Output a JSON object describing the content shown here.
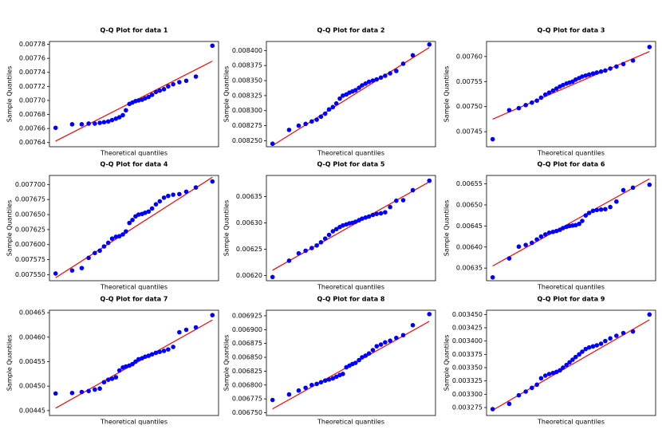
{
  "chart_data": [
    {
      "type": "scatter",
      "title": "Q-Q Plot for data 1",
      "xlabel": "Theoretical quantiles",
      "ylabel": "Sample Quantiles",
      "xlim": [
        -2.2,
        2.2
      ],
      "ylim": [
        0.007634,
        0.007784
      ],
      "yticks": [
        0.00764,
        0.00766,
        0.00768,
        {
          "value": 0.0077,
          "label": "0.00770"
        },
        0.00772,
        0.00774,
        0.00776,
        0.00778
      ],
      "series": [
        {
          "color": "blue",
          "x": [
            -2.04,
            -1.61,
            -1.36,
            -1.18,
            -1.02,
            -0.89,
            -0.78,
            -0.67,
            -0.57,
            -0.47,
            -0.38,
            -0.29,
            -0.21,
            -0.12,
            -0.04,
            0.04,
            0.12,
            0.21,
            0.29,
            0.38,
            0.47,
            0.57,
            0.67,
            0.78,
            0.89,
            1.02,
            1.18,
            1.36,
            1.61,
            2.04
          ],
          "values": [
            0.007661,
            0.007666,
            0.007666,
            0.007667,
            0.007667,
            0.007668,
            0.007669,
            0.00767,
            0.007672,
            0.007674,
            0.007676,
            0.007679,
            0.007686,
            0.007695,
            0.007697,
            0.007699,
            0.0077,
            0.007701,
            0.007703,
            0.007705,
            0.007708,
            0.007712,
            0.007714,
            0.007716,
            0.00772,
            0.007723,
            0.007726,
            0.007728,
            0.007734,
            0.007778
          ]
        }
      ],
      "fit_line": {
        "color": "red",
        "x": [
          -2.04,
          2.04
        ],
        "values": [
          0.007642,
          0.007756
        ]
      }
    },
    {
      "type": "scatter",
      "title": "Q-Q Plot for data 2",
      "xlabel": "Theoretical quantiles",
      "ylabel": "Sample Quantiles",
      "xlim": [
        -2.2,
        2.2
      ],
      "ylim": [
        0.00824,
        0.008415
      ],
      "yticks": [
        {
          "value": 0.00825,
          "label": "0.008250"
        },
        0.008275,
        {
          "value": 0.0083,
          "label": "0.008300"
        },
        0.008325,
        {
          "value": 0.00835,
          "label": "0.008350"
        },
        0.008375,
        {
          "value": 0.0084,
          "label": "0.008400"
        }
      ],
      "series": [
        {
          "color": "blue",
          "x": [
            -2.04,
            -1.61,
            -1.36,
            -1.18,
            -1.02,
            -0.89,
            -0.78,
            -0.67,
            -0.57,
            -0.47,
            -0.38,
            -0.29,
            -0.21,
            -0.12,
            -0.04,
            0.04,
            0.12,
            0.21,
            0.29,
            0.38,
            0.47,
            0.57,
            0.67,
            0.78,
            0.89,
            1.02,
            1.18,
            1.36,
            1.61,
            2.04
          ],
          "values": [
            0.008245,
            0.008268,
            0.008275,
            0.008278,
            0.008282,
            0.008285,
            0.00829,
            0.008295,
            0.008302,
            0.008306,
            0.008312,
            0.00832,
            0.008325,
            0.008327,
            0.00833,
            0.008332,
            0.008334,
            0.008338,
            0.008342,
            0.008345,
            0.008348,
            0.00835,
            0.008352,
            0.008355,
            0.008358,
            0.008362,
            0.008366,
            0.008378,
            0.008392,
            0.00841
          ]
        }
      ],
      "fit_line": {
        "color": "red",
        "x": [
          -2.04,
          2.04
        ],
        "values": [
          0.008242,
          0.008405
        ]
      }
    },
    {
      "type": "scatter",
      "title": "Q-Q Plot for data 3",
      "xlabel": "Theoretical quantiles",
      "ylabel": "Sample Quantiles",
      "xlim": [
        -2.2,
        2.2
      ],
      "ylim": [
        0.00742,
        0.00763
      ],
      "yticks": [
        0.00745,
        {
          "value": 0.0075,
          "label": "0.00750"
        },
        0.00755,
        {
          "value": 0.0076,
          "label": "0.00760"
        }
      ],
      "series": [
        {
          "color": "blue",
          "x": [
            -2.04,
            -1.61,
            -1.36,
            -1.18,
            -1.02,
            -0.89,
            -0.78,
            -0.67,
            -0.57,
            -0.47,
            -0.38,
            -0.29,
            -0.21,
            -0.12,
            -0.04,
            0.04,
            0.12,
            0.21,
            0.29,
            0.38,
            0.47,
            0.57,
            0.67,
            0.78,
            0.89,
            1.02,
            1.18,
            1.36,
            1.61,
            2.04
          ],
          "values": [
            0.007435,
            0.007493,
            0.007497,
            0.007503,
            0.007508,
            0.007512,
            0.007518,
            0.007524,
            0.007528,
            0.007532,
            0.007536,
            0.00754,
            0.007543,
            0.007546,
            0.007548,
            0.00755,
            0.007554,
            0.007557,
            0.00756,
            0.007562,
            0.007564,
            0.007566,
            0.007568,
            0.00757,
            0.007572,
            0.007576,
            0.00758,
            0.007585,
            0.007592,
            0.007619
          ]
        }
      ],
      "fit_line": {
        "color": "red",
        "x": [
          -2.04,
          2.04
        ],
        "values": [
          0.007475,
          0.00761
        ]
      }
    },
    {
      "type": "scatter",
      "title": "Q-Q Plot for data 4",
      "xlabel": "Theoretical quantiles",
      "ylabel": "Sample Quantiles",
      "xlim": [
        -2.2,
        2.2
      ],
      "ylim": [
        0.00754,
        0.007715
      ],
      "yticks": [
        {
          "value": 0.00755,
          "label": "0.007550"
        },
        0.007575,
        {
          "value": 0.0076,
          "label": "0.007600"
        },
        0.007625,
        {
          "value": 0.00765,
          "label": "0.007650"
        },
        0.007675,
        {
          "value": 0.0077,
          "label": "0.007700"
        }
      ],
      "series": [
        {
          "color": "blue",
          "x": [
            -2.04,
            -1.61,
            -1.36,
            -1.18,
            -1.02,
            -0.89,
            -0.78,
            -0.67,
            -0.57,
            -0.47,
            -0.38,
            -0.29,
            -0.21,
            -0.12,
            -0.04,
            0.04,
            0.12,
            0.21,
            0.29,
            0.38,
            0.47,
            0.57,
            0.67,
            0.78,
            0.89,
            1.02,
            1.18,
            1.36,
            1.61,
            2.04
          ],
          "values": [
            0.007552,
            0.007557,
            0.007561,
            0.007578,
            0.007586,
            0.00759,
            0.007597,
            0.007603,
            0.00761,
            0.007613,
            0.007614,
            0.007617,
            0.007622,
            0.007636,
            0.007641,
            0.007647,
            0.00765,
            0.007651,
            0.007653,
            0.007655,
            0.00766,
            0.007667,
            0.007672,
            0.007678,
            0.007681,
            0.007683,
            0.007684,
            0.007688,
            0.007695,
            0.007705
          ]
        }
      ],
      "fit_line": {
        "color": "red",
        "x": [
          -2.04,
          2.04
        ],
        "values": [
          0.007545,
          0.007712
        ]
      }
    },
    {
      "type": "scatter",
      "title": "Q-Q Plot for data 5",
      "xlabel": "Theoretical quantiles",
      "ylabel": "Sample Quantiles",
      "xlim": [
        -2.2,
        2.2
      ],
      "ylim": [
        0.00619,
        0.00639
      ],
      "yticks": [
        {
          "value": 0.0062,
          "label": "0.00620"
        },
        0.00625,
        {
          "value": 0.0063,
          "label": "0.00630"
        },
        0.00635
      ],
      "series": [
        {
          "color": "blue",
          "x": [
            -2.04,
            -1.61,
            -1.36,
            -1.18,
            -1.02,
            -0.89,
            -0.78,
            -0.67,
            -0.57,
            -0.47,
            -0.38,
            -0.29,
            -0.21,
            -0.12,
            -0.04,
            0.04,
            0.12,
            0.21,
            0.29,
            0.38,
            0.47,
            0.57,
            0.67,
            0.78,
            0.89,
            1.02,
            1.18,
            1.36,
            1.61,
            2.04
          ],
          "values": [
            0.006197,
            0.006228,
            0.006242,
            0.006247,
            0.006252,
            0.006257,
            0.006263,
            0.00627,
            0.006277,
            0.006284,
            0.006288,
            0.006292,
            0.006295,
            0.006297,
            0.006299,
            0.0063,
            0.006302,
            0.006305,
            0.006308,
            0.00631,
            0.006312,
            0.006315,
            0.006317,
            0.006318,
            0.00632,
            0.00633,
            0.006342,
            0.006343,
            0.006362,
            0.00638
          ]
        }
      ],
      "fit_line": {
        "color": "red",
        "x": [
          -2.04,
          2.04
        ],
        "values": [
          0.00621,
          0.006378
        ]
      }
    },
    {
      "type": "scatter",
      "title": "Q-Q Plot for data 6",
      "xlabel": "Theoretical quantiles",
      "ylabel": "Sample Quantiles",
      "xlim": [
        -2.2,
        2.2
      ],
      "ylim": [
        0.00632,
        0.00657
      ],
      "yticks": [
        0.00635,
        {
          "value": 0.0064,
          "label": "0.00640"
        },
        0.00645,
        {
          "value": 0.0065,
          "label": "0.00650"
        },
        0.00655
      ],
      "series": [
        {
          "color": "blue",
          "x": [
            -2.04,
            -1.61,
            -1.36,
            -1.18,
            -1.02,
            -0.89,
            -0.78,
            -0.67,
            -0.57,
            -0.47,
            -0.38,
            -0.29,
            -0.21,
            -0.12,
            -0.04,
            0.04,
            0.12,
            0.21,
            0.29,
            0.38,
            0.47,
            0.57,
            0.67,
            0.78,
            0.89,
            1.02,
            1.18,
            1.36,
            1.61,
            2.04
          ],
          "values": [
            0.006328,
            0.006373,
            0.006401,
            0.006405,
            0.00641,
            0.006418,
            0.006425,
            0.00643,
            0.006434,
            0.006436,
            0.006438,
            0.006441,
            0.006445,
            0.006448,
            0.00645,
            0.006451,
            0.006452,
            0.006455,
            0.006462,
            0.006475,
            0.006481,
            0.006486,
            0.006488,
            0.006489,
            0.00649,
            0.006495,
            0.006508,
            0.006535,
            0.006541,
            0.006548
          ]
        }
      ],
      "fit_line": {
        "color": "red",
        "x": [
          -2.04,
          2.04
        ],
        "values": [
          0.006355,
          0.006562
        ]
      }
    },
    {
      "type": "scatter",
      "title": "Q-Q Plot for data 7",
      "xlabel": "Theoretical quantiles",
      "ylabel": "Sample Quantiles",
      "xlim": [
        -2.2,
        2.2
      ],
      "ylim": [
        0.00444,
        0.004655
      ],
      "yticks": [
        0.00445,
        {
          "value": 0.0045,
          "label": "0.00450"
        },
        0.00455,
        {
          "value": 0.0046,
          "label": "0.00460"
        },
        0.00465
      ],
      "series": [
        {
          "color": "blue",
          "x": [
            -2.04,
            -1.61,
            -1.36,
            -1.18,
            -1.02,
            -0.89,
            -0.78,
            -0.67,
            -0.57,
            -0.47,
            -0.38,
            -0.29,
            -0.21,
            -0.12,
            -0.04,
            0.04,
            0.12,
            0.21,
            0.29,
            0.38,
            0.47,
            0.57,
            0.67,
            0.78,
            0.89,
            1.02,
            1.18,
            1.36,
            1.61,
            2.04
          ],
          "values": [
            0.004485,
            0.004486,
            0.004488,
            0.00449,
            0.004493,
            0.004495,
            0.004508,
            0.004513,
            0.004515,
            0.004518,
            0.004532,
            0.004538,
            0.00454,
            0.004542,
            0.004545,
            0.00455,
            0.004555,
            0.004557,
            0.00456,
            0.004562,
            0.004565,
            0.004568,
            0.00457,
            0.004572,
            0.004575,
            0.00458,
            0.00461,
            0.004615,
            0.00462,
            0.004645
          ]
        }
      ],
      "fit_line": {
        "color": "red",
        "x": [
          -2.04,
          2.04
        ],
        "values": [
          0.004455,
          0.004635
        ]
      }
    },
    {
      "type": "scatter",
      "title": "Q-Q Plot for data 8",
      "xlabel": "Theoretical quantiles",
      "ylabel": "Sample Quantiles",
      "xlim": [
        -2.2,
        2.2
      ],
      "ylim": [
        0.006745,
        0.006935
      ],
      "yticks": [
        {
          "value": 0.00675,
          "label": "0.006750"
        },
        0.006775,
        {
          "value": 0.0068,
          "label": "0.006800"
        },
        0.006825,
        {
          "value": 0.00685,
          "label": "0.006850"
        },
        0.006875,
        {
          "value": 0.0069,
          "label": "0.006900"
        },
        0.006925
      ],
      "series": [
        {
          "color": "blue",
          "x": [
            -2.04,
            -1.61,
            -1.36,
            -1.18,
            -1.02,
            -0.89,
            -0.78,
            -0.67,
            -0.57,
            -0.47,
            -0.38,
            -0.29,
            -0.21,
            -0.12,
            -0.04,
            0.04,
            0.12,
            0.21,
            0.29,
            0.38,
            0.47,
            0.57,
            0.67,
            0.78,
            0.89,
            1.02,
            1.18,
            1.36,
            1.61,
            2.04
          ],
          "values": [
            0.006773,
            0.006783,
            0.00679,
            0.006795,
            0.0068,
            0.006802,
            0.006805,
            0.006808,
            0.00681,
            0.006812,
            0.006815,
            0.006818,
            0.00682,
            0.006832,
            0.006835,
            0.006838,
            0.00684,
            0.006845,
            0.00685,
            0.006853,
            0.006857,
            0.006863,
            0.00687,
            0.006873,
            0.006877,
            0.00688,
            0.006885,
            0.00689,
            0.006908,
            0.006928
          ]
        }
      ],
      "fit_line": {
        "color": "red",
        "x": [
          -2.04,
          2.04
        ],
        "values": [
          0.006757,
          0.006915
        ]
      }
    },
    {
      "type": "scatter",
      "title": "Q-Q Plot for data 9",
      "xlabel": "Theoretical quantiles",
      "ylabel": "Sample Quantiles",
      "xlim": [
        -2.2,
        2.2
      ],
      "ylim": [
        0.00326,
        0.003458
      ],
      "yticks": [
        0.003275,
        {
          "value": 0.0033,
          "label": "0.003300"
        },
        0.003325,
        {
          "value": 0.00335,
          "label": "0.003350"
        },
        0.003375,
        {
          "value": 0.0034,
          "label": "0.003400"
        },
        0.003425,
        {
          "value": 0.00345,
          "label": "0.003450"
        }
      ],
      "series": [
        {
          "color": "blue",
          "x": [
            -2.04,
            -1.61,
            -1.36,
            -1.18,
            -1.02,
            -0.89,
            -0.78,
            -0.67,
            -0.57,
            -0.47,
            -0.38,
            -0.29,
            -0.21,
            -0.12,
            -0.04,
            0.04,
            0.12,
            0.21,
            0.29,
            0.38,
            0.47,
            0.57,
            0.67,
            0.78,
            0.89,
            1.02,
            1.18,
            1.36,
            1.61,
            2.04
          ],
          "values": [
            0.003272,
            0.003282,
            0.003298,
            0.003305,
            0.003312,
            0.003318,
            0.00333,
            0.003335,
            0.003338,
            0.00334,
            0.003342,
            0.003345,
            0.00335,
            0.003355,
            0.00336,
            0.003365,
            0.00337,
            0.003375,
            0.00338,
            0.003385,
            0.003388,
            0.00339,
            0.003392,
            0.003395,
            0.0034,
            0.003405,
            0.00341,
            0.003415,
            0.003418,
            0.00345
          ]
        }
      ],
      "fit_line": {
        "color": "red",
        "x": [
          -2.04,
          2.04
        ],
        "values": [
          0.00327,
          0.00344
        ]
      }
    }
  ]
}
